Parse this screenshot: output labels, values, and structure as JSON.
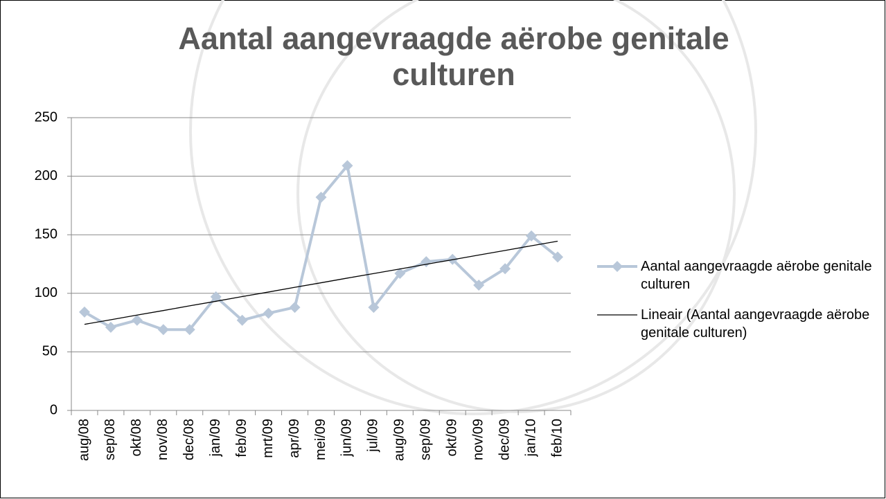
{
  "chart_data": {
    "type": "line",
    "title": "Aantal aangevraagde aërobe genitale culturen",
    "categories": [
      "aug/08",
      "sep/08",
      "okt/08",
      "nov/08",
      "dec/08",
      "jan/09",
      "feb/09",
      "mrt/09",
      "apr/09",
      "mei/09",
      "jun/09",
      "jul/09",
      "aug/09",
      "sep/09",
      "okt/09",
      "nov/09",
      "dec/09",
      "jan/10",
      "feb/10"
    ],
    "series": [
      {
        "name": "Aantal aangevraagde aërobe genitale culturen",
        "color": "#b8c7d9",
        "values": [
          84,
          71,
          77,
          69,
          69,
          97,
          77,
          83,
          88,
          182,
          209,
          88,
          117,
          127,
          129,
          107,
          121,
          149,
          131
        ]
      },
      {
        "name": "Lineair (Aantal aangevraagde aërobe genitale culturen)",
        "color": "#000000",
        "values": [
          73.5,
          77.4,
          81.4,
          85.3,
          89.3,
          93.2,
          97.2,
          101.1,
          105.1,
          109.0,
          113.0,
          116.9,
          120.8,
          124.8,
          128.7,
          132.7,
          136.6,
          140.6,
          144.5
        ]
      }
    ],
    "ylim": [
      0,
      250
    ],
    "yticks": [
      0,
      50,
      100,
      150,
      200,
      250
    ],
    "grid": true
  }
}
